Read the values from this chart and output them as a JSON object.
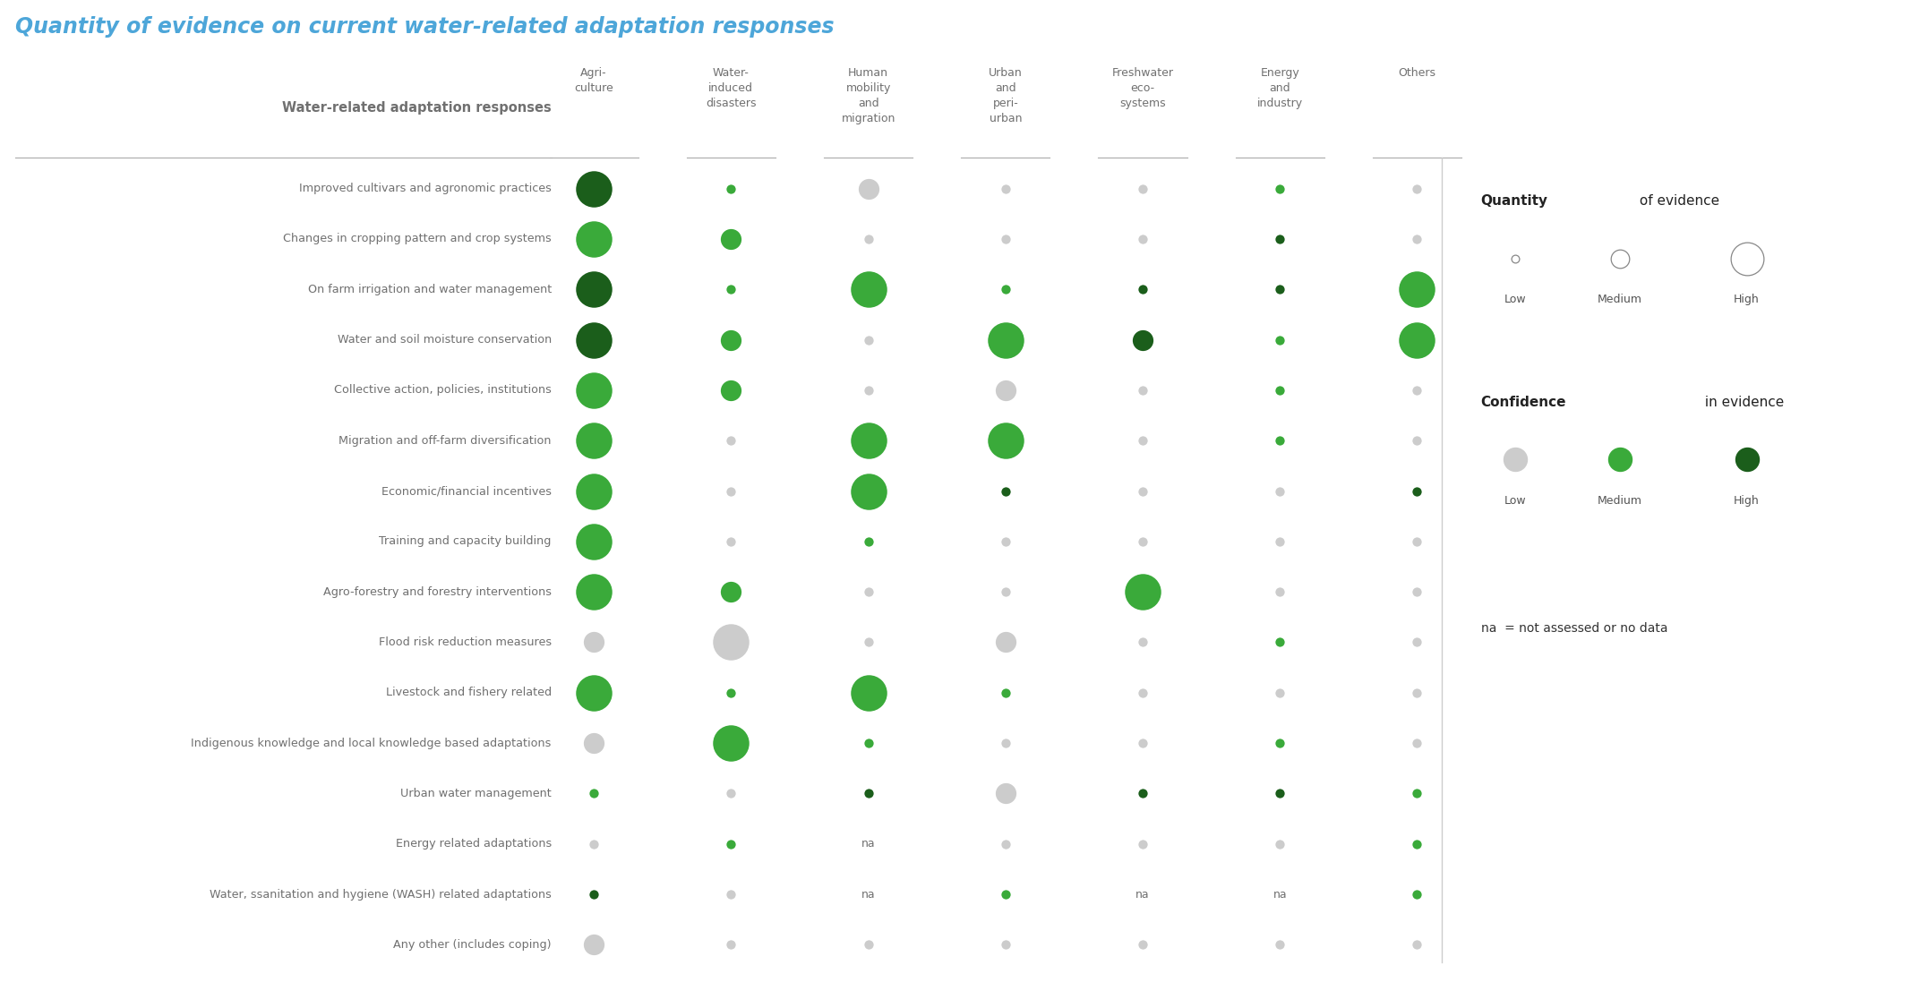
{
  "title": "Quantity of evidence on current water-related adaptation responses",
  "title_color": "#4da6d9",
  "col_header_color": "#707070",
  "row_label_color": "#707070",
  "background_color": "#ffffff",
  "rows": [
    "Improved cultivars and agronomic practices",
    "Changes in cropping pattern and crop systems",
    "On farm irrigation and water management",
    "Water and soil moisture conservation",
    "Collective action, policies, institutions",
    "Migration and off-farm diversification",
    "Economic/financial incentives",
    "Training and capacity building",
    "Agro-forestry and forestry interventions",
    "Flood risk reduction measures",
    "Livestock and fishery related",
    "Indigenous knowledge and local knowledge based adaptations",
    "Urban water management",
    "Energy related adaptations",
    "Water, ssanitation and hygiene (WASH) related adaptations",
    "Any other (includes coping)"
  ],
  "col_labels": [
    "Agri-\nculture",
    "Water-\ninduced\ndisasters",
    "Human\nmobility\nand\nmigration",
    "Urban\nand\nperi-\nurban",
    "Freshwater\neco-\nsystems",
    "Energy\nand\nindustry",
    "Others"
  ],
  "note": "na  = not assessed or no data",
  "data": [
    [
      {
        "size": 3,
        "confidence": "high"
      },
      {
        "size": 1,
        "confidence": "medium"
      },
      {
        "size": 2,
        "confidence": "low"
      },
      {
        "size": 1,
        "confidence": "low"
      },
      {
        "size": 1,
        "confidence": "low"
      },
      {
        "size": 1,
        "confidence": "medium"
      },
      {
        "size": 1,
        "confidence": "low"
      }
    ],
    [
      {
        "size": 3,
        "confidence": "medium"
      },
      {
        "size": 2,
        "confidence": "medium"
      },
      {
        "size": 1,
        "confidence": "low"
      },
      {
        "size": 1,
        "confidence": "low"
      },
      {
        "size": 1,
        "confidence": "low"
      },
      {
        "size": 1,
        "confidence": "high"
      },
      {
        "size": 1,
        "confidence": "low"
      }
    ],
    [
      {
        "size": 3,
        "confidence": "high"
      },
      {
        "size": 1,
        "confidence": "medium"
      },
      {
        "size": 3,
        "confidence": "medium"
      },
      {
        "size": 1,
        "confidence": "medium"
      },
      {
        "size": 1,
        "confidence": "high"
      },
      {
        "size": 1,
        "confidence": "high"
      },
      {
        "size": 3,
        "confidence": "medium"
      }
    ],
    [
      {
        "size": 3,
        "confidence": "high"
      },
      {
        "size": 2,
        "confidence": "medium"
      },
      {
        "size": 1,
        "confidence": "low"
      },
      {
        "size": 3,
        "confidence": "medium"
      },
      {
        "size": 2,
        "confidence": "high"
      },
      {
        "size": 1,
        "confidence": "medium"
      },
      {
        "size": 3,
        "confidence": "medium"
      }
    ],
    [
      {
        "size": 3,
        "confidence": "medium"
      },
      {
        "size": 2,
        "confidence": "medium"
      },
      {
        "size": 1,
        "confidence": "low"
      },
      {
        "size": 2,
        "confidence": "low"
      },
      {
        "size": 1,
        "confidence": "low"
      },
      {
        "size": 1,
        "confidence": "medium"
      },
      {
        "size": 1,
        "confidence": "low"
      }
    ],
    [
      {
        "size": 3,
        "confidence": "medium"
      },
      {
        "size": 1,
        "confidence": "low"
      },
      {
        "size": 3,
        "confidence": "medium"
      },
      {
        "size": 3,
        "confidence": "medium"
      },
      {
        "size": 1,
        "confidence": "low"
      },
      {
        "size": 1,
        "confidence": "medium"
      },
      {
        "size": 1,
        "confidence": "low"
      }
    ],
    [
      {
        "size": 3,
        "confidence": "medium"
      },
      {
        "size": 1,
        "confidence": "low"
      },
      {
        "size": 3,
        "confidence": "medium"
      },
      {
        "size": 1,
        "confidence": "high"
      },
      {
        "size": 1,
        "confidence": "low"
      },
      {
        "size": 1,
        "confidence": "low"
      },
      {
        "size": 1,
        "confidence": "high"
      }
    ],
    [
      {
        "size": 3,
        "confidence": "medium"
      },
      {
        "size": 1,
        "confidence": "low"
      },
      {
        "size": 1,
        "confidence": "medium"
      },
      {
        "size": 1,
        "confidence": "low"
      },
      {
        "size": 1,
        "confidence": "low"
      },
      {
        "size": 1,
        "confidence": "low"
      },
      {
        "size": 1,
        "confidence": "low"
      }
    ],
    [
      {
        "size": 3,
        "confidence": "medium"
      },
      {
        "size": 2,
        "confidence": "medium"
      },
      {
        "size": 1,
        "confidence": "low"
      },
      {
        "size": 1,
        "confidence": "low"
      },
      {
        "size": 3,
        "confidence": "medium"
      },
      {
        "size": 1,
        "confidence": "low"
      },
      {
        "size": 1,
        "confidence": "low"
      }
    ],
    [
      {
        "size": 2,
        "confidence": "low"
      },
      {
        "size": 3,
        "confidence": "low"
      },
      {
        "size": 1,
        "confidence": "low"
      },
      {
        "size": 2,
        "confidence": "low"
      },
      {
        "size": 1,
        "confidence": "low"
      },
      {
        "size": 1,
        "confidence": "medium"
      },
      {
        "size": 1,
        "confidence": "low"
      }
    ],
    [
      {
        "size": 3,
        "confidence": "medium"
      },
      {
        "size": 1,
        "confidence": "medium"
      },
      {
        "size": 3,
        "confidence": "medium"
      },
      {
        "size": 1,
        "confidence": "medium"
      },
      {
        "size": 1,
        "confidence": "low"
      },
      {
        "size": 1,
        "confidence": "low"
      },
      {
        "size": 1,
        "confidence": "low"
      }
    ],
    [
      {
        "size": 2,
        "confidence": "low"
      },
      {
        "size": 3,
        "confidence": "medium"
      },
      {
        "size": 1,
        "confidence": "medium"
      },
      {
        "size": 1,
        "confidence": "low"
      },
      {
        "size": 1,
        "confidence": "low"
      },
      {
        "size": 1,
        "confidence": "medium"
      },
      {
        "size": 1,
        "confidence": "low"
      }
    ],
    [
      {
        "size": 1,
        "confidence": "medium"
      },
      {
        "size": 1,
        "confidence": "low"
      },
      {
        "size": 1,
        "confidence": "high"
      },
      {
        "size": 2,
        "confidence": "low"
      },
      {
        "size": 1,
        "confidence": "high"
      },
      {
        "size": 1,
        "confidence": "high"
      },
      {
        "size": 1,
        "confidence": "medium"
      }
    ],
    [
      {
        "size": 1,
        "confidence": "low"
      },
      {
        "size": 1,
        "confidence": "medium"
      },
      {
        "size": 0,
        "confidence": "na"
      },
      {
        "size": 1,
        "confidence": "low"
      },
      {
        "size": 1,
        "confidence": "low"
      },
      {
        "size": 1,
        "confidence": "low"
      },
      {
        "size": 1,
        "confidence": "medium"
      }
    ],
    [
      {
        "size": 1,
        "confidence": "high"
      },
      {
        "size": 1,
        "confidence": "low"
      },
      {
        "size": 0,
        "confidence": "na"
      },
      {
        "size": 1,
        "confidence": "medium"
      },
      {
        "size": 0,
        "confidence": "na"
      },
      {
        "size": 0,
        "confidence": "na"
      },
      {
        "size": 1,
        "confidence": "medium"
      }
    ],
    [
      {
        "size": 2,
        "confidence": "low"
      },
      {
        "size": 1,
        "confidence": "low"
      },
      {
        "size": 1,
        "confidence": "low"
      },
      {
        "size": 1,
        "confidence": "low"
      },
      {
        "size": 1,
        "confidence": "low"
      },
      {
        "size": 1,
        "confidence": "low"
      },
      {
        "size": 1,
        "confidence": "low"
      }
    ]
  ],
  "confidence_colors": {
    "low": "#cccccc",
    "medium": "#3aaa3a",
    "high": "#1b5e1b"
  },
  "size_map": {
    "1": 55,
    "2": 280,
    "3": 850
  },
  "legend_qty_sizes": [
    40,
    220,
    700
  ],
  "legend_qty_labels": [
    "Low",
    "Medium",
    "High"
  ],
  "legend_conf_colors": [
    "#cccccc",
    "#3aaa3a",
    "#1b5e1b"
  ],
  "legend_conf_labels": [
    "Low",
    "Medium",
    "High"
  ]
}
